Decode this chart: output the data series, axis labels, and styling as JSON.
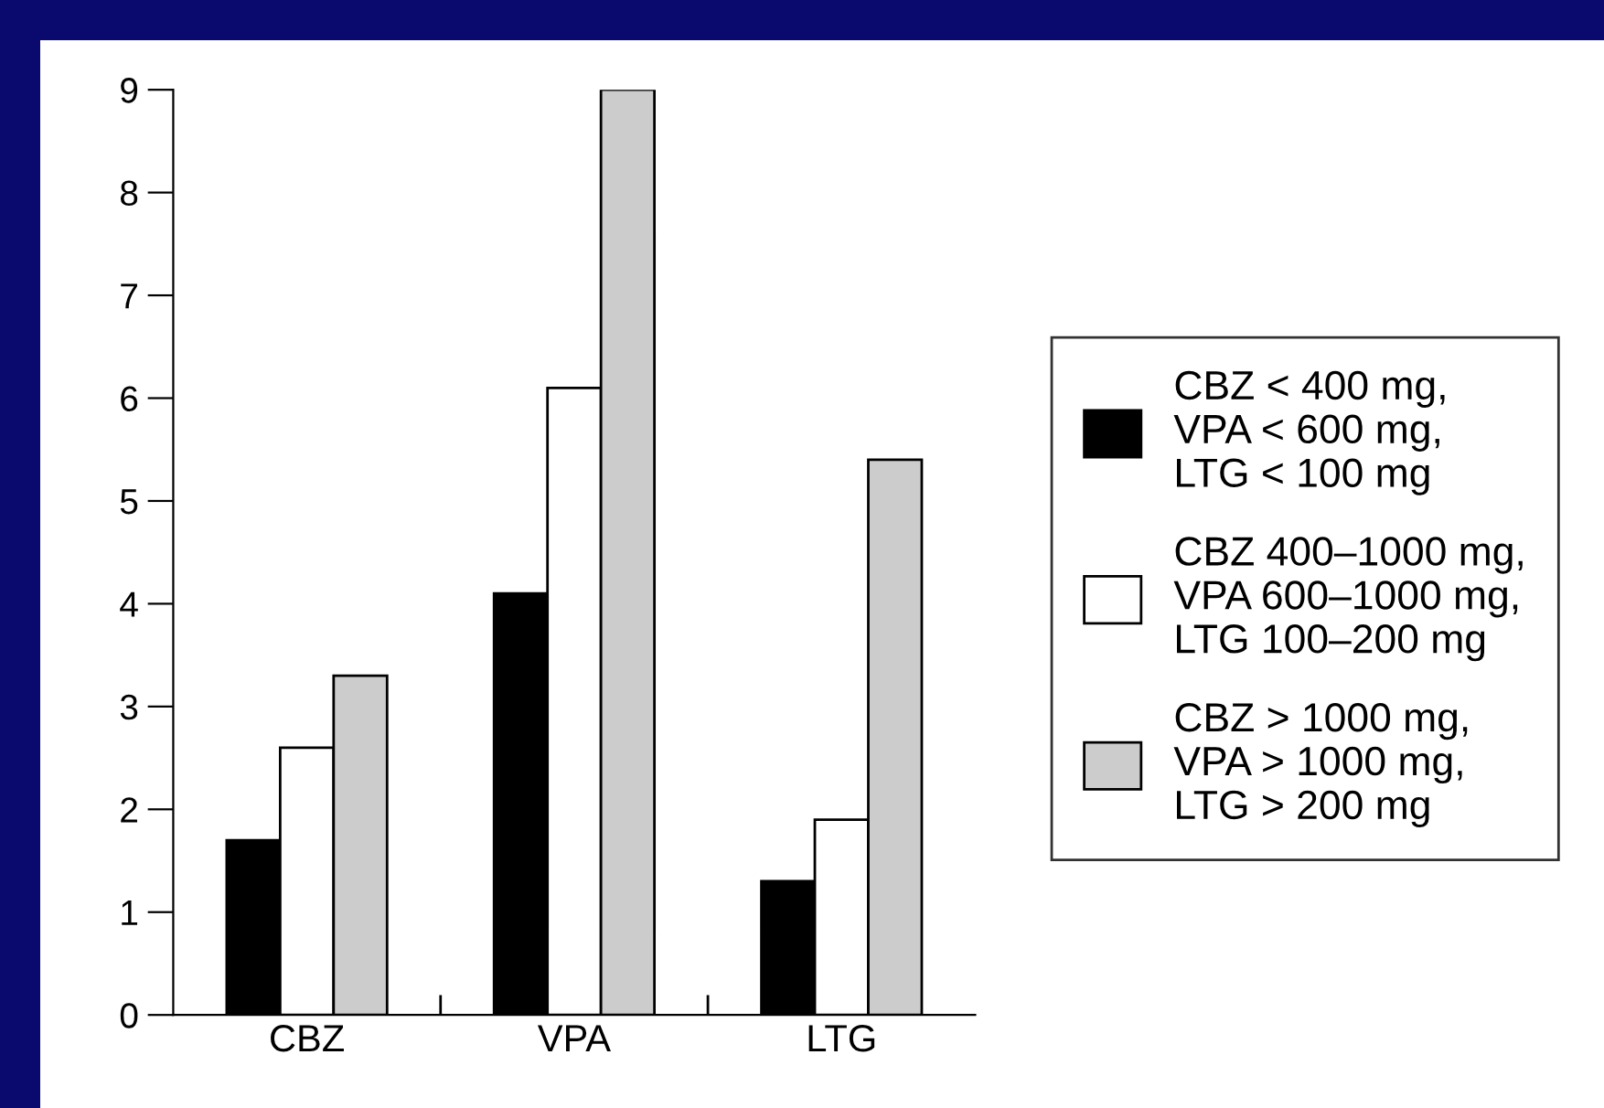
{
  "chart_data": {
    "type": "bar",
    "categories": [
      "CBZ",
      "VPA",
      "LTG"
    ],
    "series": [
      {
        "name": "CBZ < 400 mg,\nVPA < 600 mg,\nLTG < 100 mg",
        "color": "#000000",
        "values": [
          1.7,
          4.1,
          1.3
        ]
      },
      {
        "name": "CBZ 400–1000 mg,\nVPA 600–1000 mg,\nLTG 100–200 mg",
        "color": "#ffffff",
        "values": [
          2.6,
          6.1,
          1.9
        ]
      },
      {
        "name": "CBZ > 1000 mg,\nVPA > 1000 mg,\nLTG > 200 mg",
        "color": "#cccccc",
        "values": [
          3.3,
          9.0,
          5.4
        ]
      }
    ],
    "ylim": [
      0,
      9
    ],
    "yticks": [
      0,
      1,
      2,
      3,
      4,
      5,
      6,
      7,
      8,
      9
    ],
    "grid": false,
    "legend": "right"
  }
}
